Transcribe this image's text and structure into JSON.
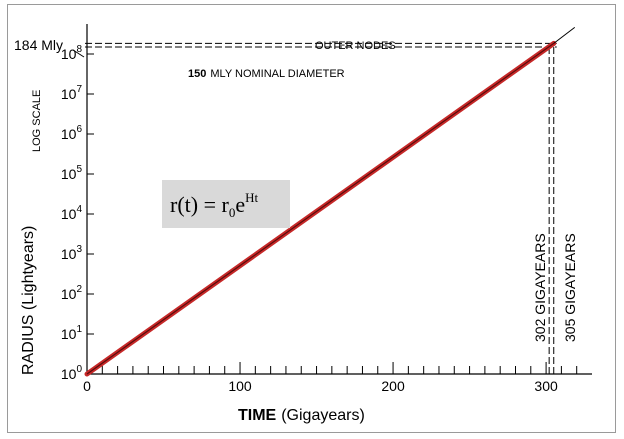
{
  "chart_data": {
    "type": "line",
    "title": "",
    "xlabel_bold": "TIME",
    "xlabel_rest": "(Gigayears)",
    "ylabel": "RADIUS (Lightyears)",
    "scale_note": "LOG SCALE",
    "xlim": [
      0,
      330
    ],
    "ylim_log10": [
      0,
      8.5
    ],
    "x_ticks": [
      0,
      100,
      200,
      300
    ],
    "x_tick_labels": [
      "0",
      "100",
      "200",
      "300"
    ],
    "y_ticks_exponents": [
      0,
      1,
      2,
      3,
      4,
      5,
      6,
      7,
      8
    ],
    "y_tick_base": "10",
    "y_scale": "log",
    "grid": false,
    "series": [
      {
        "name": "",
        "color": "#c62828",
        "x": [
          0,
          305
        ],
        "y_log10": [
          0,
          8.265
        ]
      }
    ],
    "reference_lines": {
      "horizontal": [
        {
          "label": "184 Mly",
          "y_log10": 8.265
        },
        {
          "label": "150 MLY NOMINAL DIAMETER",
          "label_bold": "150",
          "label_rest": "MLY  NOMINAL DIAMETER",
          "y_log10": 8.176
        }
      ],
      "horizontal_top_label": "OUTER NODES",
      "vertical": [
        {
          "label": "302 GIGAYEARS",
          "x": 302
        },
        {
          "label": "305 GIGAYEARS",
          "x": 305
        }
      ]
    },
    "formula": {
      "lhs": "r(t) = r",
      "sub": "0",
      "base": "e",
      "sup": "Ht"
    }
  }
}
